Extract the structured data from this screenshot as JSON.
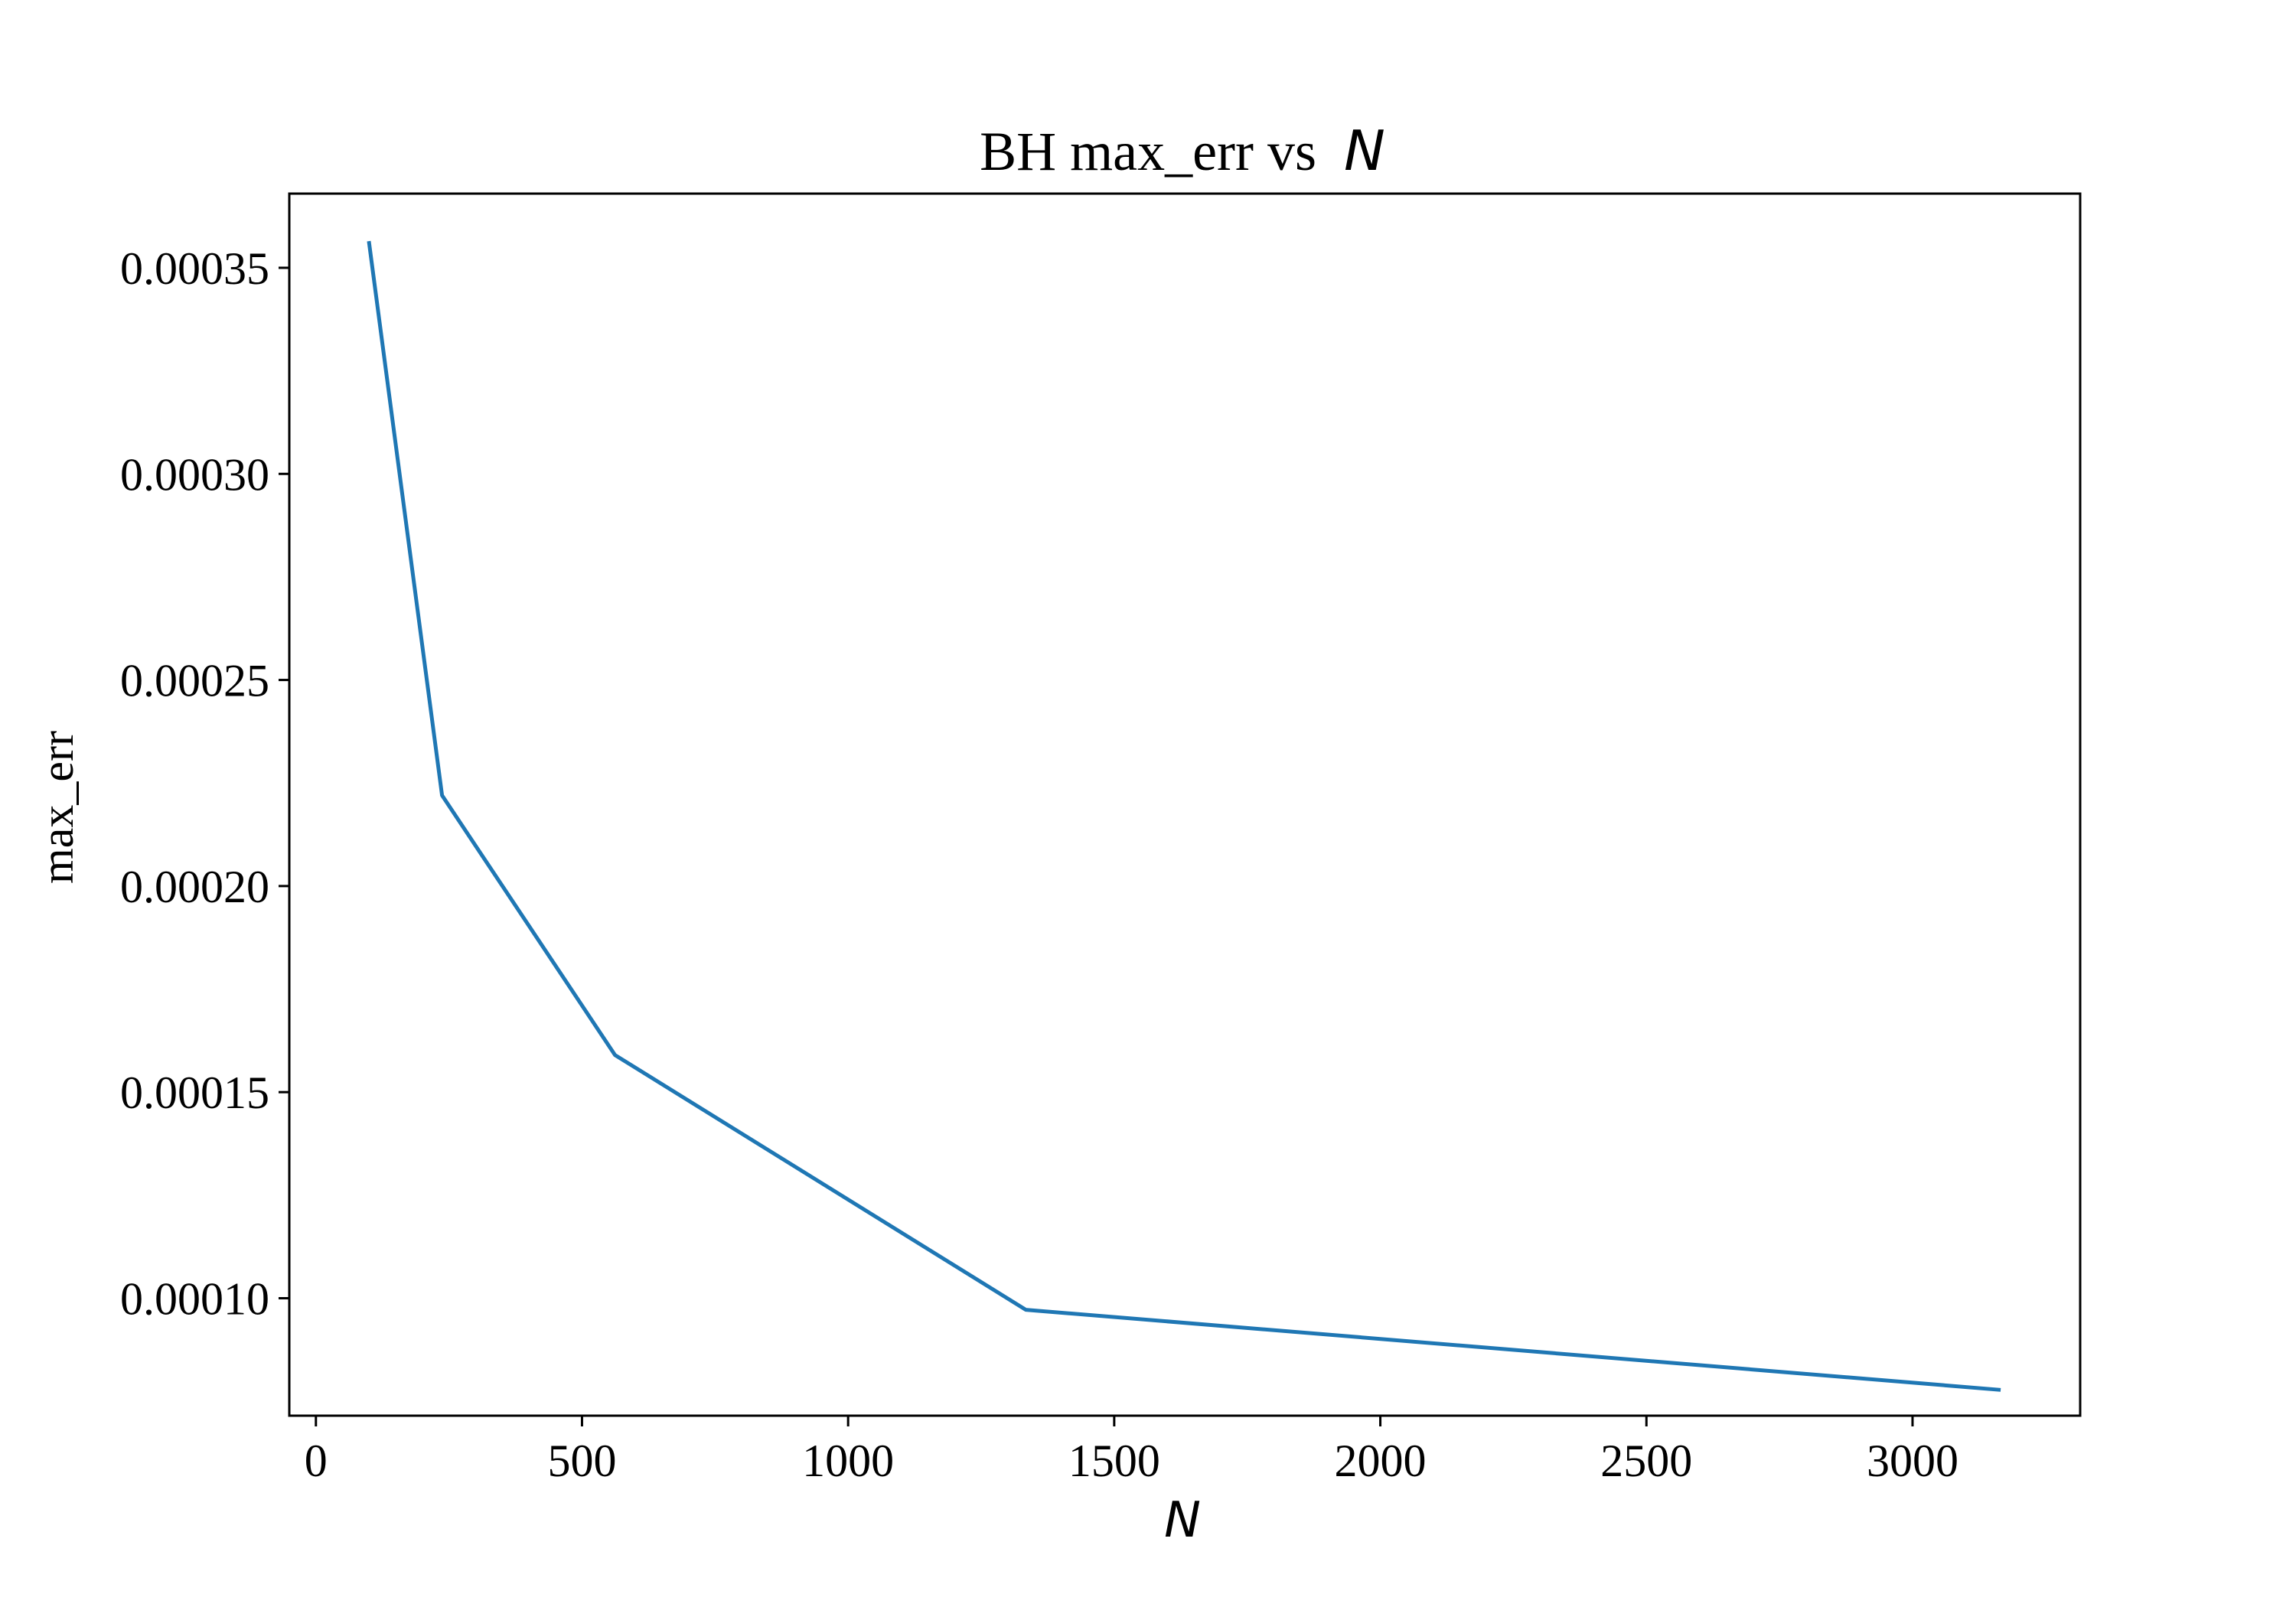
{
  "chart_data": {
    "type": "line",
    "title": "BH max_err vs",
    "title_math": "N",
    "xlabel": "N",
    "ylabel": "max_err",
    "x": [
      100,
      237,
      562,
      1334,
      3162
    ],
    "series": [
      {
        "values": [
          0.000356,
          0.000222,
          0.000159,
          9.72e-05,
          7.78e-05
        ],
        "color": "#1f77b4"
      }
    ],
    "xlim": [
      -50,
      3315
    ],
    "ylim": [
      7.15e-05,
      0.000368
    ],
    "xticks": [
      0,
      500,
      1000,
      1500,
      2000,
      2500,
      3000
    ],
    "xtick_labels": [
      "0",
      "500",
      "1000",
      "1500",
      "2000",
      "2500",
      "3000"
    ],
    "yticks": [
      0.0001,
      0.00015,
      0.0002,
      0.00025,
      0.0003,
      0.00035
    ],
    "ytick_labels": [
      "0.00010",
      "0.00015",
      "0.00020",
      "0.00025",
      "0.00030",
      "0.00035"
    ],
    "grid": false,
    "legend": "none"
  }
}
